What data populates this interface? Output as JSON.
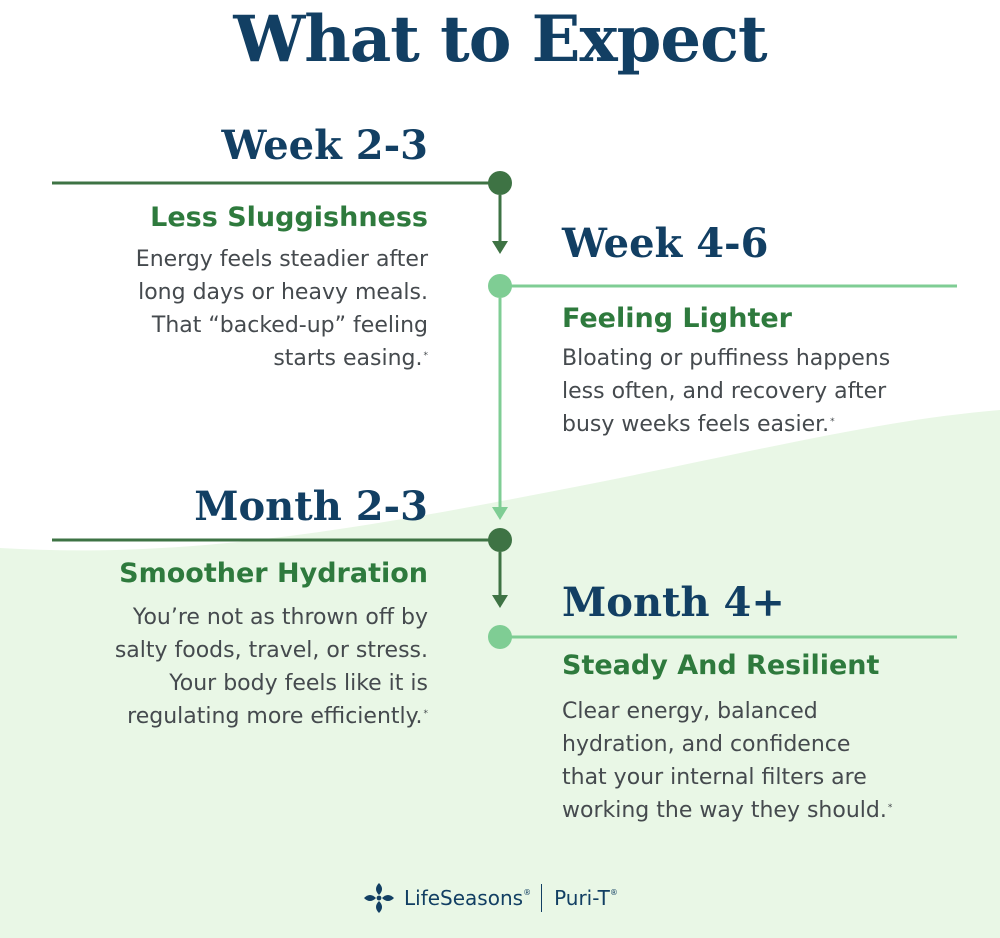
{
  "title": "What to Expect",
  "stages": [
    {
      "period": "Week 2-3",
      "heading": "Less Sluggishness",
      "body": [
        "Energy feels steadier after",
        "long days or heavy meals.",
        "That “backed-up” feeling",
        "starts easing."
      ],
      "mark": "*"
    },
    {
      "period": "Week 4-6",
      "heading": "Feeling Lighter",
      "body": [
        "Bloating or puffiness happens",
        "less often, and recovery after",
        "busy weeks feels easier."
      ],
      "mark": "*"
    },
    {
      "period": "Month 2-3",
      "heading": "Smoother Hydration",
      "body": [
        "You’re not as thrown off by",
        "salty foods, travel, or stress.",
        "Your body feels like it is",
        "regulating more efficiently."
      ],
      "mark": "*"
    },
    {
      "period": "Month 4+",
      "heading": "Steady And Resilient",
      "body": [
        "Clear energy, balanced",
        "hydration, and confidence",
        "that your internal filters are",
        "working the way they should."
      ],
      "mark": "*"
    }
  ],
  "footer": {
    "brand": "LifeSeasons",
    "brand_mark": "®",
    "product": "Puri-T",
    "product_mark": "®"
  },
  "colors": {
    "navy": "#123f63",
    "dark_green": "#3e7344",
    "light_green": "#7fcd94",
    "text_green": "#2e7a3d",
    "background_wave": "#e9f7e6"
  },
  "icons": [
    "lifeseasons-logo-icon"
  ]
}
